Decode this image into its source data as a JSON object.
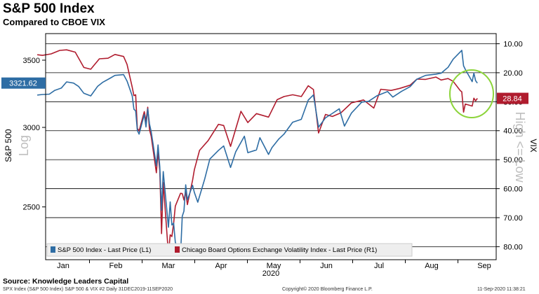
{
  "header": {
    "title": "S&P 500 Index",
    "subtitle": "Compared to CBOE VIX"
  },
  "footer": {
    "source": "Source: Knowledge Leaders Capital",
    "left": "SPX Index (S&P 500 Index) S&P 500 & VIX #2  Daily 31DEC2019-11SEP2020",
    "center": "Copyright© 2020 Bloomberg Finance L.P.",
    "right": "11-Sep-2020 11:38:21"
  },
  "colors": {
    "spx": "#2e6da4",
    "vix": "#b01c2e",
    "highlight_circle": "#8cd43a",
    "grid": "#000000"
  },
  "chart_data": {
    "type": "line",
    "xlabel_year": "2020",
    "x_ticks": [
      "Jan",
      "Feb",
      "Mar",
      "Apr",
      "May",
      "Jun",
      "Jul",
      "Aug",
      "Sep"
    ],
    "left_axis": {
      "label": "S&P 500",
      "scale_label": "Log",
      "scale": "log",
      "ticks": [
        "3500",
        "3000",
        "2500"
      ],
      "range": [
        2215,
        3720
      ]
    },
    "right_axis": {
      "label": "VIX",
      "scale_label": "High <= Low",
      "inverted": true,
      "ticks": [
        "10.00",
        "20.00",
        "30.00",
        "40.00",
        "50.00",
        "60.00",
        "70.00",
        "80.00"
      ],
      "range": [
        6.5,
        84.5
      ]
    },
    "last_values": {
      "spx": "3321.62",
      "vix": "28.84"
    },
    "legend_position": "bottom-left",
    "annotation": "circle highlighting late-August divergence",
    "series": [
      {
        "name": "S&P 500 Index - Last Price (L1)",
        "axis": "left",
        "points": [
          [
            "2019-12-31",
            3231
          ],
          [
            "2020-01-03",
            3235
          ],
          [
            "2020-01-07",
            3238
          ],
          [
            "2020-01-10",
            3265
          ],
          [
            "2020-01-14",
            3284
          ],
          [
            "2020-01-17",
            3330
          ],
          [
            "2020-01-21",
            3321
          ],
          [
            "2020-01-24",
            3295
          ],
          [
            "2020-01-27",
            3244
          ],
          [
            "2020-01-31",
            3225
          ],
          [
            "2020-02-04",
            3297
          ],
          [
            "2020-02-07",
            3328
          ],
          [
            "2020-02-11",
            3357
          ],
          [
            "2020-02-14",
            3380
          ],
          [
            "2020-02-19",
            3386
          ],
          [
            "2020-02-21",
            3337
          ],
          [
            "2020-02-24",
            3225
          ],
          [
            "2020-02-25",
            3128
          ],
          [
            "2020-02-26",
            3116
          ],
          [
            "2020-02-27",
            2979
          ],
          [
            "2020-02-28",
            2954
          ],
          [
            "2020-03-02",
            3090
          ],
          [
            "2020-03-03",
            3003
          ],
          [
            "2020-03-04",
            3130
          ],
          [
            "2020-03-05",
            3024
          ],
          [
            "2020-03-06",
            2972
          ],
          [
            "2020-03-09",
            2747
          ],
          [
            "2020-03-10",
            2882
          ],
          [
            "2020-03-11",
            2741
          ],
          [
            "2020-03-12",
            2481
          ],
          [
            "2020-03-13",
            2711
          ],
          [
            "2020-03-16",
            2386
          ],
          [
            "2020-03-17",
            2529
          ],
          [
            "2020-03-18",
            2398
          ],
          [
            "2020-03-19",
            2409
          ],
          [
            "2020-03-20",
            2305
          ],
          [
            "2020-03-23",
            2237
          ],
          [
            "2020-03-24",
            2447
          ],
          [
            "2020-03-25",
            2476
          ],
          [
            "2020-03-26",
            2630
          ],
          [
            "2020-03-27",
            2541
          ],
          [
            "2020-03-30",
            2627
          ],
          [
            "2020-03-31",
            2585
          ],
          [
            "2020-04-02",
            2527
          ],
          [
            "2020-04-06",
            2664
          ],
          [
            "2020-04-09",
            2790
          ],
          [
            "2020-04-14",
            2846
          ],
          [
            "2020-04-17",
            2875
          ],
          [
            "2020-04-21",
            2737
          ],
          [
            "2020-04-24",
            2837
          ],
          [
            "2020-04-29",
            2940
          ],
          [
            "2020-05-01",
            2831
          ],
          [
            "2020-05-06",
            2849
          ],
          [
            "2020-05-08",
            2930
          ],
          [
            "2020-05-13",
            2820
          ],
          [
            "2020-05-15",
            2864
          ],
          [
            "2020-05-19",
            2922
          ],
          [
            "2020-05-22",
            2955
          ],
          [
            "2020-05-27",
            3036
          ],
          [
            "2020-06-01",
            3056
          ],
          [
            "2020-06-05",
            3194
          ],
          [
            "2020-06-08",
            3232
          ],
          [
            "2020-06-11",
            3002
          ],
          [
            "2020-06-15",
            3067
          ],
          [
            "2020-06-19",
            3098
          ],
          [
            "2020-06-23",
            3131
          ],
          [
            "2020-06-26",
            3009
          ],
          [
            "2020-06-30",
            3100
          ],
          [
            "2020-07-06",
            3179
          ],
          [
            "2020-07-10",
            3185
          ],
          [
            "2020-07-15",
            3227
          ],
          [
            "2020-07-21",
            3257
          ],
          [
            "2020-07-24",
            3216
          ],
          [
            "2020-07-29",
            3258
          ],
          [
            "2020-08-03",
            3294
          ],
          [
            "2020-08-07",
            3351
          ],
          [
            "2020-08-12",
            3380
          ],
          [
            "2020-08-18",
            3390
          ],
          [
            "2020-08-21",
            3397
          ],
          [
            "2020-08-25",
            3443
          ],
          [
            "2020-08-28",
            3508
          ],
          [
            "2020-09-02",
            3580
          ],
          [
            "2020-09-03",
            3455
          ],
          [
            "2020-09-04",
            3427
          ],
          [
            "2020-09-08",
            3332
          ],
          [
            "2020-09-09",
            3398
          ],
          [
            "2020-09-10",
            3339
          ],
          [
            "2020-09-11",
            3321
          ]
        ]
      },
      {
        "name": "Chicago Board Options Exchange Volatility Index - Last Price (R1)",
        "axis": "right",
        "points": [
          [
            "2019-12-31",
            13.8
          ],
          [
            "2020-01-03",
            14.0
          ],
          [
            "2020-01-08",
            13.5
          ],
          [
            "2020-01-13",
            12.3
          ],
          [
            "2020-01-17",
            12.1
          ],
          [
            "2020-01-22",
            12.9
          ],
          [
            "2020-01-27",
            18.2
          ],
          [
            "2020-01-31",
            18.8
          ],
          [
            "2020-02-05",
            15.2
          ],
          [
            "2020-02-10",
            15.0
          ],
          [
            "2020-02-14",
            13.7
          ],
          [
            "2020-02-19",
            14.4
          ],
          [
            "2020-02-21",
            17.1
          ],
          [
            "2020-02-24",
            25.0
          ],
          [
            "2020-02-25",
            27.9
          ],
          [
            "2020-02-26",
            27.6
          ],
          [
            "2020-02-27",
            39.2
          ],
          [
            "2020-02-28",
            40.1
          ],
          [
            "2020-03-02",
            33.4
          ],
          [
            "2020-03-03",
            36.8
          ],
          [
            "2020-03-04",
            31.9
          ],
          [
            "2020-03-05",
            39.6
          ],
          [
            "2020-03-06",
            41.9
          ],
          [
            "2020-03-09",
            54.5
          ],
          [
            "2020-03-10",
            47.3
          ],
          [
            "2020-03-11",
            53.9
          ],
          [
            "2020-03-12",
            75.5
          ],
          [
            "2020-03-13",
            57.8
          ],
          [
            "2020-03-16",
            82.7
          ],
          [
            "2020-03-17",
            75.9
          ],
          [
            "2020-03-18",
            76.5
          ],
          [
            "2020-03-19",
            72.0
          ],
          [
            "2020-03-20",
            66.0
          ],
          [
            "2020-03-23",
            61.6
          ],
          [
            "2020-03-24",
            61.7
          ],
          [
            "2020-03-25",
            63.9
          ],
          [
            "2020-03-26",
            61.0
          ],
          [
            "2020-03-27",
            65.5
          ],
          [
            "2020-03-30",
            57.1
          ],
          [
            "2020-03-31",
            53.5
          ],
          [
            "2020-04-03",
            46.8
          ],
          [
            "2020-04-08",
            43.4
          ],
          [
            "2020-04-14",
            37.8
          ],
          [
            "2020-04-17",
            38.2
          ],
          [
            "2020-04-21",
            45.4
          ],
          [
            "2020-04-27",
            33.3
          ],
          [
            "2020-05-01",
            37.2
          ],
          [
            "2020-05-06",
            34.1
          ],
          [
            "2020-05-13",
            35.3
          ],
          [
            "2020-05-18",
            29.3
          ],
          [
            "2020-05-22",
            28.2
          ],
          [
            "2020-05-27",
            27.6
          ],
          [
            "2020-06-01",
            28.2
          ],
          [
            "2020-06-05",
            24.5
          ],
          [
            "2020-06-08",
            25.8
          ],
          [
            "2020-06-11",
            40.8
          ],
          [
            "2020-06-15",
            34.4
          ],
          [
            "2020-06-19",
            35.1
          ],
          [
            "2020-06-24",
            33.8
          ],
          [
            "2020-06-30",
            30.4
          ],
          [
            "2020-07-07",
            29.4
          ],
          [
            "2020-07-13",
            32.2
          ],
          [
            "2020-07-17",
            25.7
          ],
          [
            "2020-07-23",
            26.1
          ],
          [
            "2020-07-28",
            25.4
          ],
          [
            "2020-08-03",
            24.3
          ],
          [
            "2020-08-07",
            22.2
          ],
          [
            "2020-08-12",
            22.3
          ],
          [
            "2020-08-18",
            21.5
          ],
          [
            "2020-08-21",
            22.5
          ],
          [
            "2020-08-25",
            22.0
          ],
          [
            "2020-08-28",
            22.96
          ],
          [
            "2020-09-01",
            26.1
          ],
          [
            "2020-09-02",
            26.6
          ],
          [
            "2020-09-03",
            33.6
          ],
          [
            "2020-09-04",
            30.8
          ],
          [
            "2020-09-08",
            31.5
          ],
          [
            "2020-09-09",
            28.8
          ],
          [
            "2020-09-10",
            29.7
          ],
          [
            "2020-09-11",
            28.84
          ]
        ]
      }
    ]
  }
}
